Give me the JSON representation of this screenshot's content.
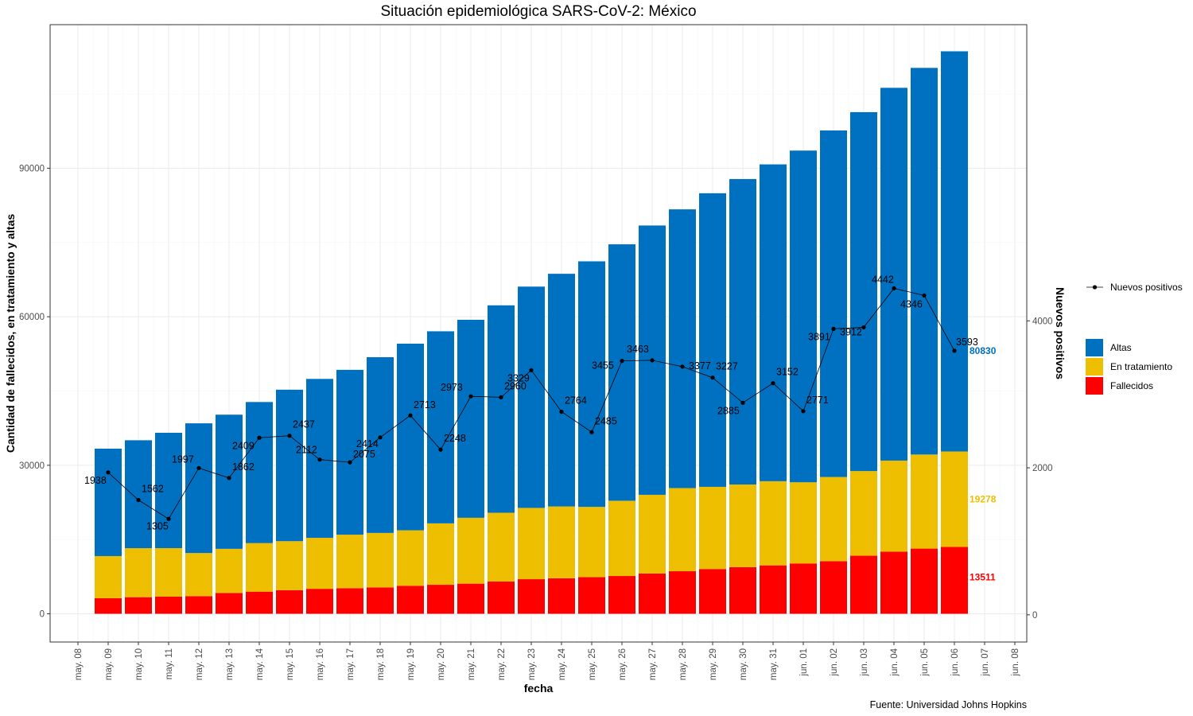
{
  "chart_data": {
    "type": "bar",
    "title": "Situación epidemiológica SARS-CoV-2: México",
    "xlabel": "fecha",
    "ylabel_left": "Cantidad de fallecidos, en tratamiento y altas",
    "ylabel_right": "Nuevos positivos",
    "caption": "Fuente: Universidad Johns Hopkins",
    "x_tick_labels": [
      "may. 08",
      "may. 09",
      "may. 10",
      "may. 11",
      "may. 12",
      "may. 13",
      "may. 14",
      "may. 15",
      "may. 16",
      "may. 17",
      "may. 18",
      "may. 19",
      "may. 20",
      "may. 21",
      "may. 22",
      "may. 23",
      "may. 24",
      "may. 25",
      "may. 26",
      "may. 27",
      "may. 28",
      "may. 29",
      "may. 30",
      "may. 31",
      "jun. 01",
      "jun. 02",
      "jun. 03",
      "jun. 04",
      "jun. 05",
      "jun. 06",
      "jun. 07",
      "jun. 08"
    ],
    "categories": [
      "may. 09",
      "may. 10",
      "may. 11",
      "may. 12",
      "may. 13",
      "may. 14",
      "may. 15",
      "may. 16",
      "may. 17",
      "may. 18",
      "may. 19",
      "may. 20",
      "may. 21",
      "may. 22",
      "may. 23",
      "may. 24",
      "may. 25",
      "may. 26",
      "may. 27",
      "may. 28",
      "may. 29",
      "may. 30",
      "may. 31",
      "jun. 01",
      "jun. 02",
      "jun. 03",
      "jun. 04",
      "jun. 05",
      "jun. 06"
    ],
    "ylim_left": [
      -5700,
      119000
    ],
    "yticks_left": [
      0,
      30000,
      60000,
      90000
    ],
    "ylim_right": [
      -370,
      8030
    ],
    "yticks_right": [
      0,
      2000,
      4000
    ],
    "stacked": true,
    "grid": true,
    "series": [
      {
        "name": "Fallecidos",
        "color": "#ff0000",
        "values": [
          3160,
          3353,
          3465,
          3573,
          4220,
          4477,
          4767,
          5045,
          5177,
          5332,
          5666,
          5862,
          6090,
          6510,
          6989,
          7179,
          7394,
          7633,
          8134,
          8597,
          9044,
          9415,
          9779,
          10167,
          10637,
          11729,
          12545,
          13170,
          13511
        ]
      },
      {
        "name": "En tratamiento",
        "color": "#edbf00",
        "values": [
          8500,
          9900,
          9800,
          8700,
          8900,
          9800,
          9900,
          10300,
          10800,
          11000,
          11200,
          12400,
          13300,
          13900,
          14400,
          14500,
          14200,
          15200,
          15900,
          16800,
          16600,
          16700,
          17000,
          16400,
          17000,
          17100,
          18400,
          19000,
          19278
        ]
      },
      {
        "name": "Altas",
        "color": "#0070c0",
        "values": [
          21700,
          21800,
          23300,
          26200,
          27100,
          28500,
          30600,
          32100,
          33300,
          35500,
          37700,
          38800,
          40000,
          41900,
          44700,
          47000,
          49600,
          51800,
          54400,
          56300,
          59300,
          61700,
          64000,
          67000,
          70000,
          72500,
          75300,
          78100,
          80830
        ]
      }
    ],
    "end_labels": [
      "13511",
      "19278",
      "80830"
    ],
    "line_series": {
      "name": "Nuevos positivos",
      "values": [
        1938,
        1562,
        1305,
        1997,
        1862,
        2409,
        2437,
        2112,
        2075,
        2414,
        2713,
        2248,
        2973,
        2960,
        3329,
        2764,
        2485,
        3455,
        3463,
        3377,
        3227,
        2885,
        3152,
        2771,
        3891,
        3912,
        4442,
        4346,
        3593
      ],
      "labels": [
        "1938",
        "1562",
        "1305",
        "1997",
        "1862",
        "2409",
        "2437",
        "2112",
        "2075",
        "2414",
        "2713",
        "2248",
        "2973",
        "2960",
        "3329",
        "2764",
        "2485",
        "3455",
        "3463",
        "3377",
        "3227",
        "2885",
        "3152",
        "2771",
        "3891",
        "3912",
        "4442",
        "4346",
        "3593"
      ]
    },
    "legend": {
      "placement": "right",
      "line_label": "Nuevos positivos",
      "fill_labels": [
        "Altas",
        "En tratamiento",
        "Fallecidos"
      ]
    }
  }
}
